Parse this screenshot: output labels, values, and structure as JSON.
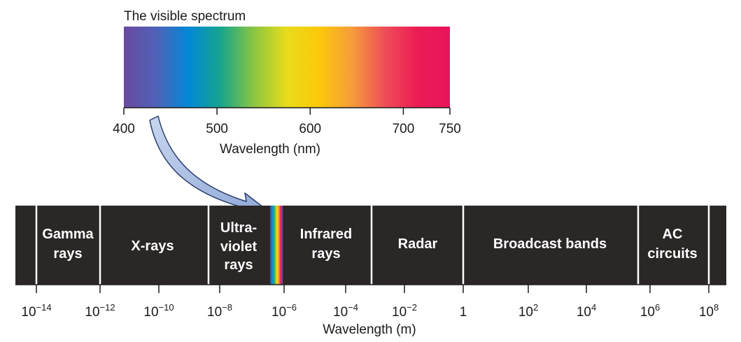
{
  "visible_spectrum": {
    "title": "The visible spectrum",
    "axis_title": "Wavelength (nm)",
    "ticks": [
      {
        "value": 400,
        "label": "400"
      },
      {
        "value": 500,
        "label": "500"
      },
      {
        "value": 600,
        "label": "600"
      },
      {
        "value": 700,
        "label": "700"
      },
      {
        "value": 750,
        "label": "750"
      }
    ],
    "range": [
      400,
      750
    ],
    "gradient_colors": [
      "#6a4a9f",
      "#4f62b8",
      "#0089d6",
      "#19a58a",
      "#8cc641",
      "#e9dc1b",
      "#fcc80a",
      "#f59c3a",
      "#ee4e58",
      "#ec1c55",
      "#e8145a"
    ]
  },
  "em_spectrum": {
    "axis_title": "Wavelength (m)",
    "bar_color": "#2a2726",
    "bands": [
      {
        "label_lines": [
          "Gamma",
          "rays"
        ]
      },
      {
        "label_lines": [
          "X-rays"
        ]
      },
      {
        "label_lines": [
          "Ultra-",
          "violet",
          "rays"
        ]
      },
      {
        "label_lines": [
          "Infrared",
          "rays"
        ]
      },
      {
        "label_lines": [
          "Radar"
        ]
      },
      {
        "label_lines": [
          "Broadcast bands"
        ]
      },
      {
        "label_lines": [
          "AC",
          "circuits"
        ]
      }
    ],
    "ticks": [
      {
        "base": "10",
        "exp": "−14"
      },
      {
        "base": "10",
        "exp": "−12"
      },
      {
        "base": "10",
        "exp": "−10"
      },
      {
        "base": "10",
        "exp": "−8"
      },
      {
        "base": "10",
        "exp": "−6"
      },
      {
        "base": "10",
        "exp": "−4"
      },
      {
        "base": "10",
        "exp": "−2"
      },
      {
        "base": "1",
        "exp": ""
      },
      {
        "base": "10",
        "exp": "2"
      },
      {
        "base": "10",
        "exp": "4"
      },
      {
        "base": "10",
        "exp": "6"
      },
      {
        "base": "10",
        "exp": "8"
      }
    ],
    "rainbow_colors": [
      "#3c57a6",
      "#0b8fd1",
      "#1aa98b",
      "#9cc63c",
      "#f6d113",
      "#f79b2d",
      "#ec2e55",
      "#7a3f98"
    ]
  }
}
